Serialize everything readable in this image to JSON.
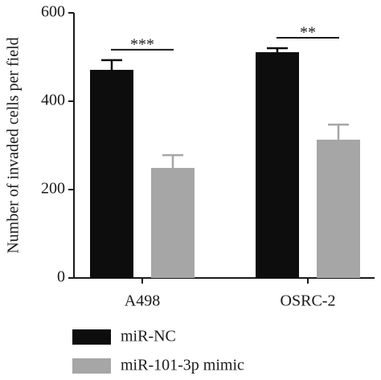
{
  "chart_data": {
    "type": "bar",
    "ylabel": "Number of invaded cells per field",
    "categories": [
      "A498",
      "OSRC-2"
    ],
    "series": [
      {
        "name": "miR-NC",
        "color": "#0d0d0d",
        "values": [
          471,
          511
        ],
        "errors": [
          22,
          9
        ]
      },
      {
        "name": "miR-101-3p mimic",
        "color": "#a6a6a6",
        "values": [
          249,
          313
        ],
        "errors": [
          29,
          34
        ]
      }
    ],
    "significance": [
      "***",
      "**"
    ],
    "ylim": [
      0,
      600
    ],
    "yticks": [
      0,
      200,
      400,
      600
    ],
    "legend": "bottom-left"
  }
}
